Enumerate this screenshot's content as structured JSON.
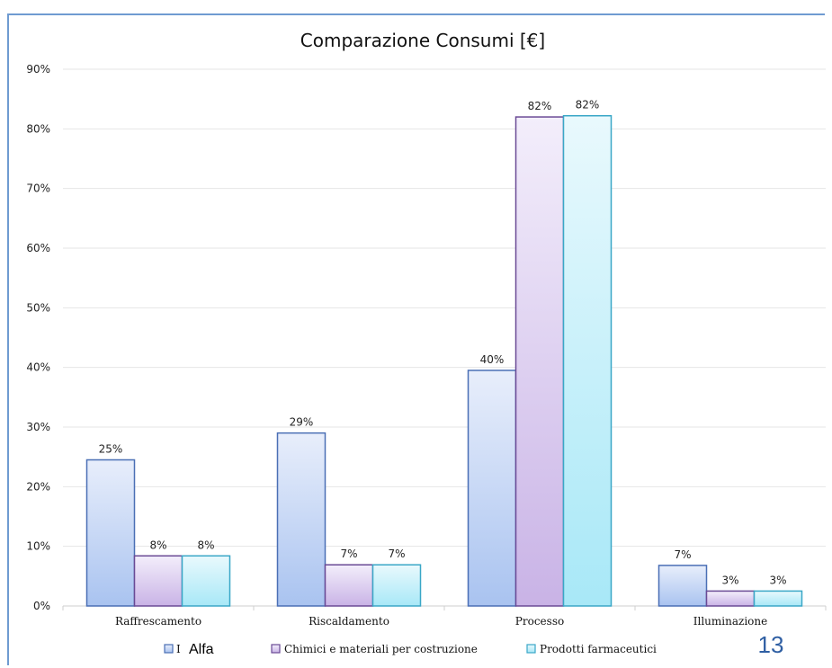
{
  "page_number": "13",
  "chart_data": {
    "type": "bar",
    "title": "Comparazione Consumi [€]",
    "xlabel": "",
    "ylabel": "",
    "ylim": [
      0,
      0.9
    ],
    "y_ticks": [
      "0%",
      "10%",
      "20%",
      "30%",
      "40%",
      "50%",
      "60%",
      "70%",
      "80%",
      "90%"
    ],
    "grid": true,
    "legend_position": "bottom",
    "categories": [
      "Raffrescamento",
      "Riscaldamento",
      "Processo",
      "Illuminazione"
    ],
    "series": [
      {
        "name": "Alfa",
        "legend_prefix": "I",
        "values": [
          0.245,
          0.29,
          0.395,
          0.068
        ],
        "labels": [
          "25%",
          "29%",
          "40%",
          "7%"
        ],
        "color_top": "#e8eefb",
        "color_bottom": "#a9c3f0",
        "stroke": "#4a6fb5"
      },
      {
        "name": "Chimici e materiali per costruzione",
        "values": [
          0.084,
          0.069,
          0.82,
          0.025
        ],
        "labels": [
          "8%",
          "7%",
          "82%",
          "3%"
        ],
        "color_top": "#f3eefb",
        "color_bottom": "#c9b3e6",
        "stroke": "#6a4a95"
      },
      {
        "name": "Prodotti farmaceutici",
        "values": [
          0.084,
          0.069,
          0.822,
          0.025
        ],
        "labels": [
          "8%",
          "7%",
          "82%",
          "3%"
        ],
        "color_top": "#e9f9fd",
        "color_bottom": "#a8e8f7",
        "stroke": "#3aa7c7"
      }
    ]
  }
}
